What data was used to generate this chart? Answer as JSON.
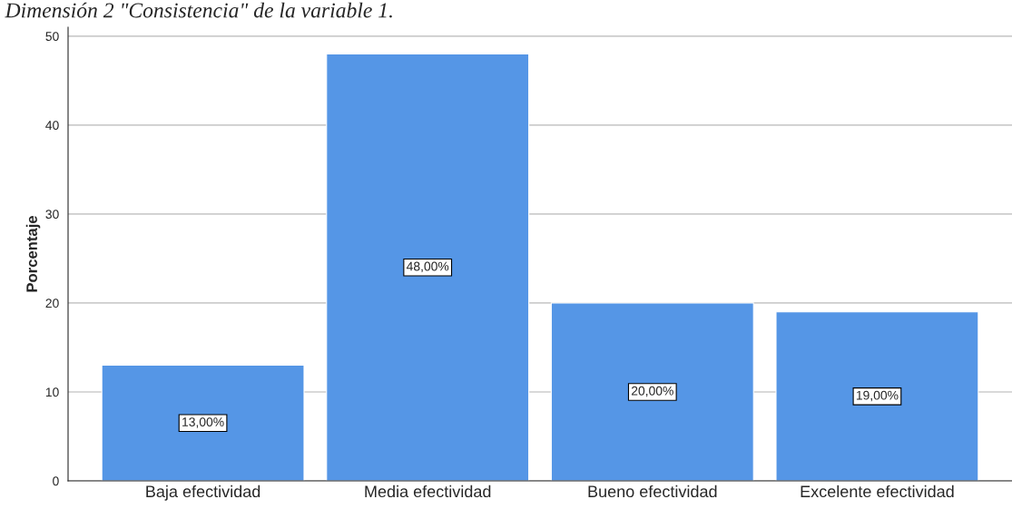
{
  "chart_data": {
    "type": "bar",
    "title": "Dimensión 2 \"Consistencia\" de la variable 1.",
    "ylabel": "Porcentaje",
    "categories": [
      "Baja efectividad",
      "Media efectividad",
      "Bueno efectividad",
      "Excelente efectividad"
    ],
    "values": [
      13,
      48,
      20,
      19
    ],
    "value_labels": [
      "13,00%",
      "48,00%",
      "20,00%",
      "19,00%"
    ],
    "color": "#5596e6",
    "ylim": [
      0,
      51
    ],
    "yticks": [
      0,
      10,
      20,
      30,
      40,
      50
    ],
    "grid": "y"
  }
}
